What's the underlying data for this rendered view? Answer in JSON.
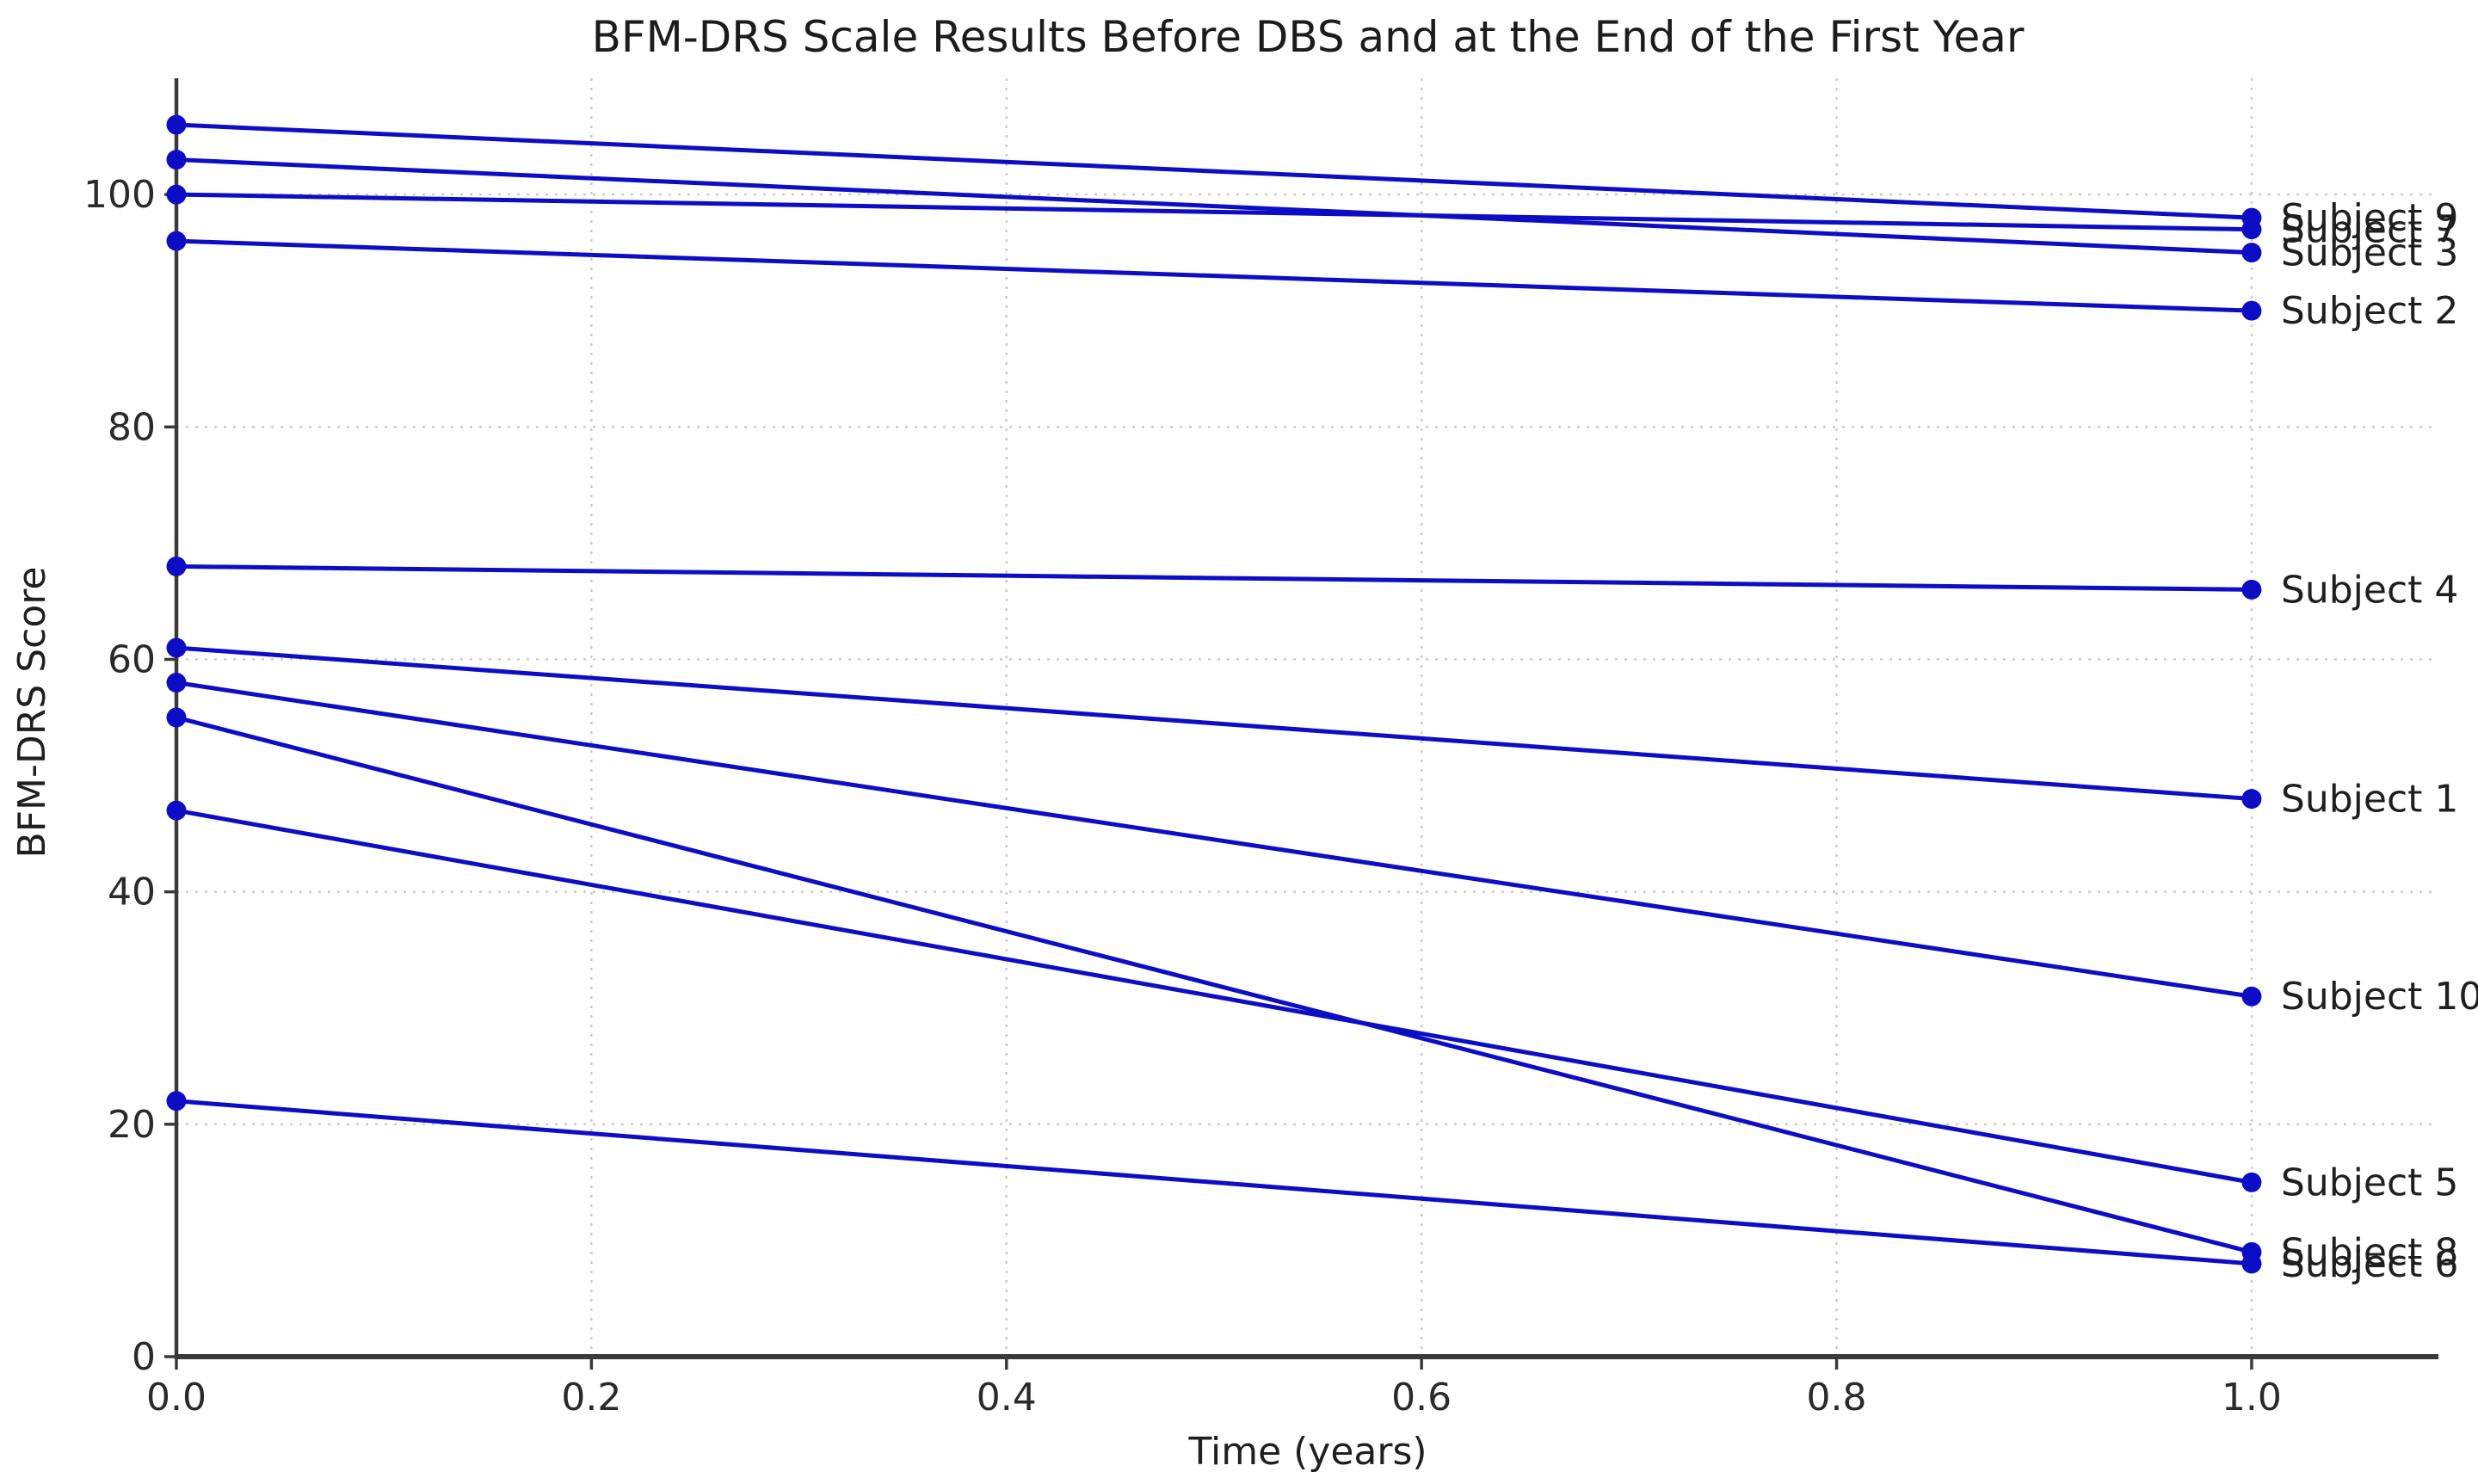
{
  "figure": {
    "background_color": "#ffffff",
    "text_color": "#1c1c1c",
    "spine_color": "#3a3a3a",
    "grid_color": "#c9c9c9",
    "tick_label_color": "#2a2a2a"
  },
  "chart_data": {
    "type": "line",
    "subtype": "slopegraph-before-after",
    "title": "BFM-DRS Scale Results Before DBS and at the End of the First Year",
    "xlabel": "Time (years)",
    "ylabel": "BFM-DRS Score",
    "x": [
      0,
      1
    ],
    "xticks": [
      0.0,
      0.2,
      0.4,
      0.6,
      0.8,
      1.0
    ],
    "xtick_labels": [
      "0.0",
      "0.2",
      "0.4",
      "0.6",
      "0.8",
      "1.0"
    ],
    "yticks": [
      0,
      20,
      40,
      60,
      80,
      100
    ],
    "ytick_labels": [
      "0",
      "20",
      "40",
      "60",
      "80",
      "100"
    ],
    "xlim": [
      0,
      1.09
    ],
    "ylim": [
      0,
      110
    ],
    "grid": true,
    "legend_position": "end-of-line-labels",
    "line_color": "#0d0dc6",
    "marker": "circle",
    "series": [
      {
        "name": "Subject 1",
        "values": [
          61,
          48
        ]
      },
      {
        "name": "Subject 2",
        "values": [
          96,
          90
        ]
      },
      {
        "name": "Subject 3",
        "values": [
          103,
          95
        ]
      },
      {
        "name": "Subject 4",
        "values": [
          68,
          66
        ]
      },
      {
        "name": "Subject 5",
        "values": [
          47,
          15
        ]
      },
      {
        "name": "Subject 6",
        "values": [
          22,
          8
        ]
      },
      {
        "name": "Subject 7",
        "values": [
          100,
          97
        ]
      },
      {
        "name": "Subject 8",
        "values": [
          55,
          9
        ]
      },
      {
        "name": "Subject 9",
        "values": [
          106,
          98
        ]
      },
      {
        "name": "Subject 10",
        "values": [
          58,
          31
        ]
      }
    ]
  }
}
